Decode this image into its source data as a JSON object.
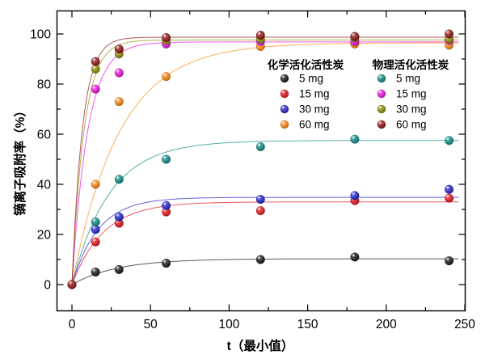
{
  "figure": {
    "background": "#ffffff",
    "frame_color": "#000000",
    "x_axis": {
      "title": "t（最小值）",
      "major_ticks": [
        0,
        50,
        100,
        150,
        200,
        250
      ],
      "minor_ticks": [
        25,
        75,
        125,
        175,
        225
      ],
      "range": [
        -10,
        255
      ]
    },
    "y_axis": {
      "title": "镝离子吸附率（%）",
      "major_ticks": [
        0,
        20,
        40,
        60,
        80,
        100
      ],
      "minor_ticks": [
        10,
        30,
        50,
        70,
        90
      ],
      "range": [
        -10,
        110
      ]
    }
  },
  "chart_data": {
    "type": "scatter",
    "title": "",
    "xlabel": "t（最小值）",
    "ylabel": "镝离子吸附率（%）",
    "x": [
      0,
      15,
      30,
      60,
      120,
      180,
      240
    ],
    "xlim": [
      -10,
      255
    ],
    "ylim": [
      -10,
      110
    ],
    "grid": false,
    "legend_position": "upper-center-right",
    "series": [
      {
        "group": "化学活化活性炭",
        "name": "5 mg",
        "color": "#141414",
        "values": [
          0,
          5,
          6,
          8.5,
          10,
          11,
          9.5
        ],
        "fit_max": 10.3,
        "fit_k": 0.035
      },
      {
        "group": "化学活化活性炭",
        "name": "15 mg",
        "color": "#e81118",
        "values": [
          0,
          17,
          24.5,
          29,
          29.5,
          33.5,
          34.5
        ],
        "fit_max": 33.0,
        "fit_k": 0.05
      },
      {
        "group": "化学活化活性炭",
        "name": "30 mg",
        "color": "#2121cf",
        "values": [
          0,
          22,
          27,
          31.5,
          34,
          35.5,
          38
        ],
        "fit_max": 34.8,
        "fit_k": 0.06
      },
      {
        "group": "化学活化活性炭",
        "name": "60 mg",
        "color": "#ff8b0f",
        "values": [
          0,
          40,
          73,
          83,
          95,
          96,
          95.5
        ],
        "fit_max": 96.5,
        "fit_k": 0.033
      },
      {
        "group": "物理活化活性炭",
        "name": "5 mg",
        "color": "#0e8c86",
        "values": [
          0,
          25,
          42,
          50,
          55,
          58,
          57.5
        ],
        "fit_max": 57.5,
        "fit_k": 0.042
      },
      {
        "group": "物理活化活性炭",
        "name": "15 mg",
        "color": "#ef0fdf",
        "values": [
          0,
          78,
          84.5,
          96,
          97,
          97,
          97.5
        ],
        "fit_max": 96.8,
        "fit_k": 0.1
      },
      {
        "group": "物理活化活性炭",
        "name": "30 mg",
        "color": "#8f8f05",
        "values": [
          0,
          86,
          92,
          97.5,
          98,
          98.5,
          98
        ],
        "fit_max": 97.6,
        "fit_k": 0.13
      },
      {
        "group": "物理活化活性炭",
        "name": "60 mg",
        "color": "#921313",
        "values": [
          0,
          89,
          94,
          98.5,
          99.5,
          99,
          100
        ],
        "fit_max": 98.7,
        "fit_k": 0.15
      }
    ],
    "legend": {
      "groups": [
        {
          "title": "化学活化活性炭",
          "items": [
            "5 mg",
            "15 mg",
            "30 mg",
            "60 mg"
          ]
        },
        {
          "title": "物理活化活性炭",
          "items": [
            "5 mg",
            "15 mg",
            "30 mg",
            "60 mg"
          ]
        }
      ]
    }
  }
}
